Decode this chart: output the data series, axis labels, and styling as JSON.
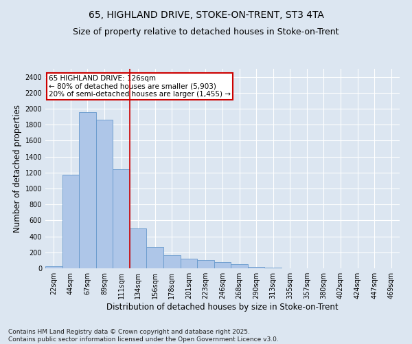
{
  "title_line1": "65, HIGHLAND DRIVE, STOKE-ON-TRENT, ST3 4TA",
  "title_line2": "Size of property relative to detached houses in Stoke-on-Trent",
  "xlabel": "Distribution of detached houses by size in Stoke-on-Trent",
  "ylabel": "Number of detached properties",
  "categories": [
    "22sqm",
    "44sqm",
    "67sqm",
    "89sqm",
    "111sqm",
    "134sqm",
    "156sqm",
    "178sqm",
    "201sqm",
    "223sqm",
    "246sqm",
    "268sqm",
    "290sqm",
    "313sqm",
    "335sqm",
    "357sqm",
    "380sqm",
    "402sqm",
    "424sqm",
    "447sqm",
    "469sqm"
  ],
  "values": [
    30,
    1170,
    1960,
    1860,
    1240,
    500,
    270,
    165,
    120,
    100,
    80,
    50,
    20,
    8,
    3,
    2,
    1,
    1,
    0,
    0,
    0
  ],
  "bar_color": "#aec6e8",
  "bar_edge_color": "#6699cc",
  "annotation_text": "65 HIGHLAND DRIVE: 126sqm\n← 80% of detached houses are smaller (5,903)\n20% of semi-detached houses are larger (1,455) →",
  "annotation_box_color": "#ffffff",
  "annotation_box_edge": "#cc0000",
  "vline_x": 4.5,
  "vline_color": "#cc0000",
  "ylim": [
    0,
    2500
  ],
  "yticks": [
    0,
    200,
    400,
    600,
    800,
    1000,
    1200,
    1400,
    1600,
    1800,
    2000,
    2200,
    2400
  ],
  "background_color": "#dce6f1",
  "grid_color": "#ffffff",
  "footer_line1": "Contains HM Land Registry data © Crown copyright and database right 2025.",
  "footer_line2": "Contains public sector information licensed under the Open Government Licence v3.0.",
  "title_fontsize": 10,
  "subtitle_fontsize": 9,
  "tick_fontsize": 7,
  "label_fontsize": 8.5,
  "annotation_fontsize": 7.5,
  "footer_fontsize": 6.5
}
